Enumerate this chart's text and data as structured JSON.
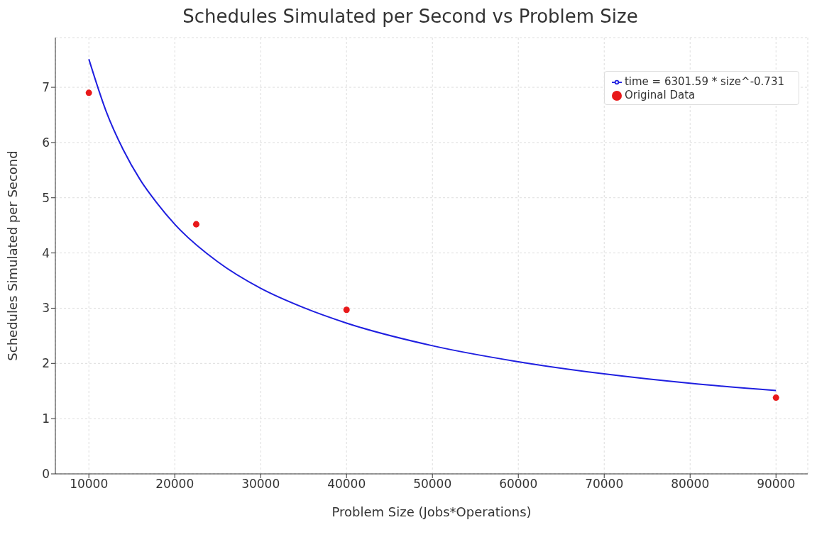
{
  "chart_data": {
    "type": "scatter",
    "title": "Schedules Simulated per Second vs Problem Size",
    "xlabel": "Problem Size (Jobs*Operations)",
    "ylabel": "Schedules Simulated per Second",
    "series": [
      {
        "name": "time = 6301.59 * size^-0.731",
        "type": "line",
        "color": "#1f1fe0",
        "marker": "none",
        "line_style": "solid",
        "x": [
          10000,
          12000,
          14000,
          16000,
          18000,
          20000,
          25000,
          30000,
          35000,
          40000,
          50000,
          60000,
          70000,
          80000,
          90000
        ],
        "values": [
          7.51,
          6.57,
          5.87,
          5.32,
          4.89,
          4.52,
          3.84,
          3.36,
          3.01,
          2.73,
          2.32,
          2.03,
          1.81,
          1.64,
          1.51
        ]
      },
      {
        "name": "Original Data",
        "color": "#e8191a",
        "marker": "circle",
        "x": [
          10000,
          22500,
          40000,
          90000
        ],
        "values": [
          6.9,
          4.52,
          2.97,
          1.38
        ]
      }
    ],
    "xlim": [
      6100,
      93700
    ],
    "xticks": [
      10000,
      20000,
      30000,
      40000,
      50000,
      60000,
      70000,
      80000,
      90000
    ],
    "ylim": [
      0,
      7.9
    ],
    "yticks": [
      0,
      1,
      2,
      3,
      4,
      5,
      6,
      7
    ],
    "grid": true,
    "legend": "top right"
  }
}
